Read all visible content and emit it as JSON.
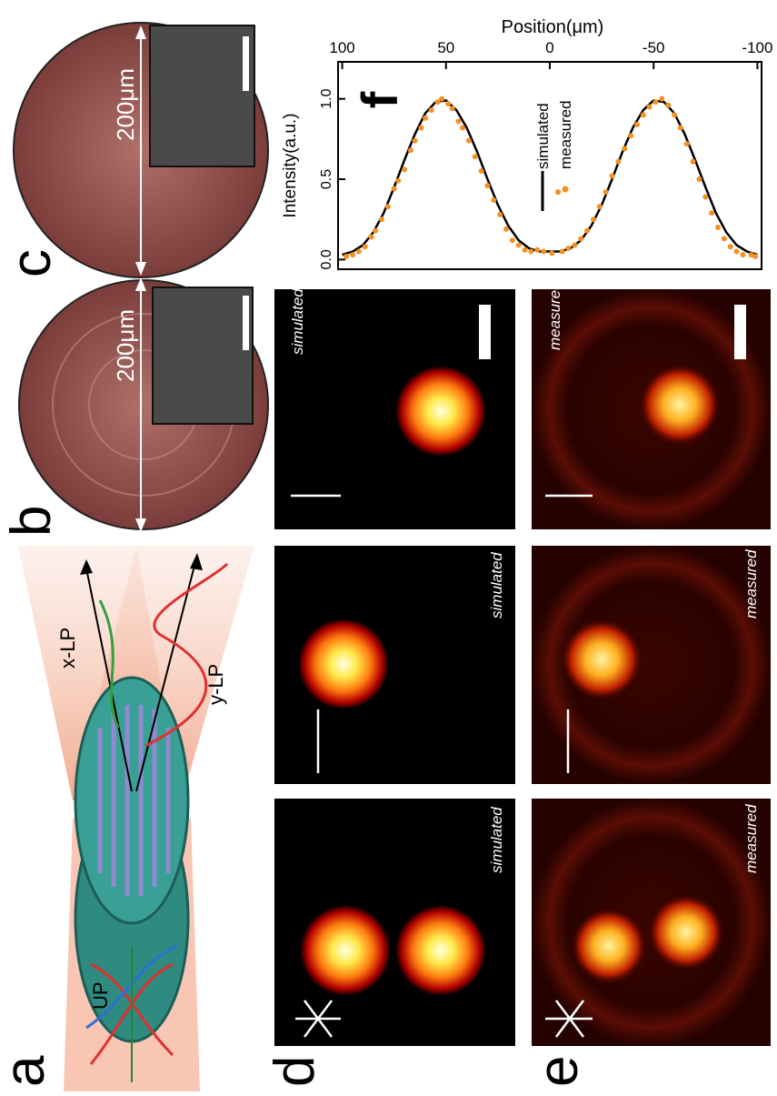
{
  "panels": {
    "a": {
      "label": "a",
      "up": "UP",
      "xlp": "x-LP",
      "ylp": "y-LP"
    },
    "b": {
      "label": "b",
      "scale": "200μm"
    },
    "c": {
      "label": "c",
      "scale": "200μm"
    },
    "d": {
      "label": "d",
      "texts": [
        "simulated",
        "simulated",
        "simulated"
      ]
    },
    "e": {
      "label": "e",
      "texts": [
        "measured",
        "measured",
        "measured"
      ]
    }
  },
  "chart_data": {
    "type": "line",
    "panel_label": "f",
    "xlabel": "Position(μm)",
    "ylabel": "Intensity(a.u.)",
    "xlim": [
      102,
      -102
    ],
    "ylim": [
      -0.06,
      1.23
    ],
    "xticks": [
      100,
      50,
      0,
      -50,
      -100
    ],
    "yticks": [
      {
        "value": 0,
        "label": "0.0"
      },
      {
        "value": 0.5,
        "label": "0.5"
      },
      {
        "value": 1,
        "label": "1.0"
      }
    ],
    "x": [
      100,
      95,
      90,
      85,
      80,
      75,
      70,
      65,
      60,
      55,
      50,
      45,
      40,
      35,
      30,
      25,
      20,
      15,
      10,
      5,
      0,
      -5,
      -10,
      -15,
      -20,
      -25,
      -30,
      -35,
      -40,
      -45,
      -50,
      -55,
      -60,
      -65,
      -70,
      -75,
      -80,
      -85,
      -90,
      -95,
      -100
    ],
    "series": [
      {
        "name": "simulated",
        "color": "#000000",
        "values": [
          0.03,
          0.05,
          0.09,
          0.17,
          0.29,
          0.45,
          0.62,
          0.78,
          0.91,
          0.98,
          0.99,
          0.93,
          0.82,
          0.67,
          0.5,
          0.34,
          0.21,
          0.12,
          0.07,
          0.05,
          0.05,
          0.05,
          0.07,
          0.12,
          0.21,
          0.34,
          0.5,
          0.67,
          0.82,
          0.93,
          0.99,
          0.98,
          0.91,
          0.78,
          0.62,
          0.45,
          0.29,
          0.17,
          0.09,
          0.05,
          0.03
        ]
      },
      {
        "name": "measured",
        "color": "#f39020",
        "x": [
          98,
          95,
          92,
          89,
          86,
          84,
          81,
          78,
          75,
          73,
          70,
          67,
          65,
          62,
          60,
          57,
          54,
          52,
          49,
          47,
          44,
          42,
          39,
          36,
          33,
          30,
          27,
          24,
          21,
          18,
          15,
          12,
          9,
          6,
          3,
          -1,
          -4,
          -6,
          -9,
          -12,
          -15,
          -18,
          -21,
          -24,
          -27,
          -30,
          -33,
          -36,
          -39,
          -42,
          -45,
          -48,
          -51,
          -54,
          -57,
          -60,
          -63,
          -66,
          -69,
          -72,
          -75,
          -78,
          -81,
          -84,
          -87,
          -90,
          -93,
          -97,
          -99
        ],
        "values": [
          0.02,
          0.03,
          0.05,
          0.08,
          0.14,
          0.18,
          0.25,
          0.33,
          0.44,
          0.49,
          0.56,
          0.68,
          0.74,
          0.82,
          0.88,
          0.93,
          0.98,
          1.0,
          0.97,
          0.94,
          0.86,
          0.82,
          0.74,
          0.64,
          0.55,
          0.46,
          0.37,
          0.28,
          0.19,
          0.12,
          0.09,
          0.06,
          0.05,
          0.06,
          0.05,
          0.04,
          0.42,
          0.05,
          0.07,
          0.09,
          0.13,
          0.18,
          0.25,
          0.33,
          0.42,
          0.52,
          0.61,
          0.69,
          0.77,
          0.84,
          0.9,
          0.95,
          0.98,
          1.0,
          0.96,
          0.9,
          0.82,
          0.72,
          0.61,
          0.5,
          0.39,
          0.29,
          0.2,
          0.13,
          0.08,
          0.05,
          0.03,
          0.03,
          0.02
        ]
      }
    ]
  }
}
